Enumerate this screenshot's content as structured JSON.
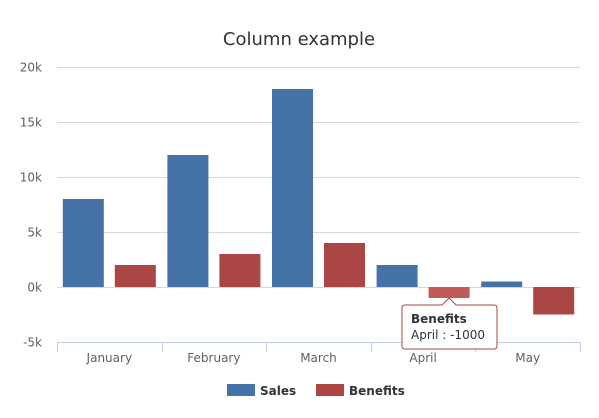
{
  "chart_data": {
    "type": "bar",
    "title": "Column example",
    "categories": [
      "January",
      "February",
      "March",
      "April",
      "May"
    ],
    "series": [
      {
        "name": "Sales",
        "color": "#4572A7",
        "values": [
          8000,
          12000,
          18000,
          2000,
          500
        ]
      },
      {
        "name": "Benefits",
        "color": "#AA4643",
        "values": [
          2000,
          3000,
          4000,
          -1000,
          -2500
        ]
      }
    ],
    "ylim": [
      -5000,
      20000
    ],
    "yticks": [
      -5000,
      0,
      5000,
      10000,
      15000,
      20000
    ],
    "ytick_labels": [
      "-5k",
      "0k",
      "5k",
      "10k",
      "15k",
      "20k"
    ],
    "grid": true,
    "legend_position": "bottom-center",
    "tooltip": {
      "series_name": "Benefits",
      "text": "April : -1000",
      "category_index": 3,
      "series_index": 1,
      "border_color": "#AA4643"
    }
  }
}
